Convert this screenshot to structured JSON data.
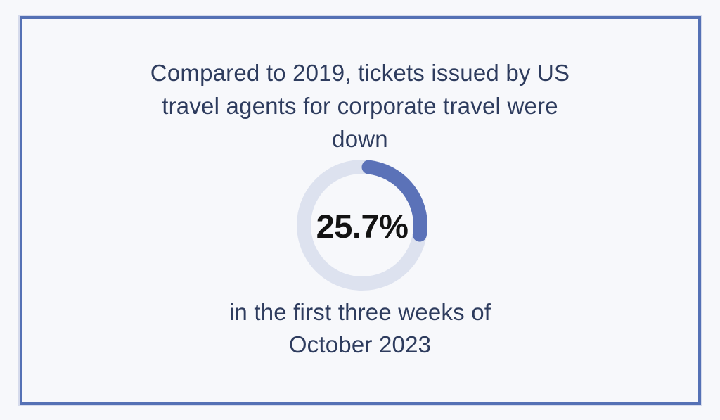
{
  "page": {
    "background_color": "#f7f8fb",
    "frame_border_color": "#5571b5",
    "frame_halo_color": "#d6dbec",
    "text_color": "#2e3c5e"
  },
  "infographic": {
    "title_lines": [
      "Compared to 2019, tickets issued by US",
      "travel agents for corporate travel were",
      "down"
    ],
    "caption_lines": [
      "in the first three weeks of",
      "October 2023"
    ]
  },
  "chart_data": {
    "type": "pie",
    "subtype": "donut-progress",
    "value": 25.7,
    "max": 100,
    "center_label": "25.7%",
    "center_label_color": "#131313",
    "arc_color": "#5b72b8",
    "track_color": "#dde2ef",
    "start_angle_deg": 7,
    "direction": "clockwise",
    "legend": "none",
    "title": "Compared to 2019, tickets issued by US travel agents for corporate travel were down",
    "caption": "in the first three weeks of October 2023"
  }
}
